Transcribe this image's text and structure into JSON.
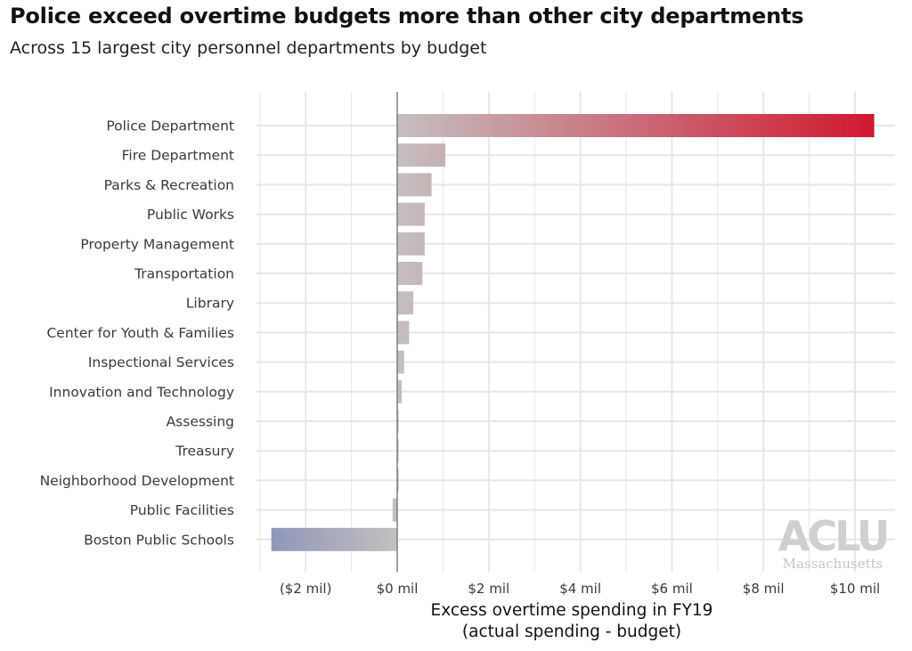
{
  "title": "Police exceed overtime budgets more than other city departments",
  "subtitle": "Across 15 largest city personnel departments by budget",
  "logo": {
    "name": "ACLU",
    "region": "Massachusetts"
  },
  "chart_data": {
    "type": "bar",
    "orientation": "horizontal",
    "categories": [
      "Police Department",
      "Fire Department",
      "Parks & Recreation",
      "Public Works",
      "Property Management",
      "Transportation",
      "Library",
      "Center for Youth & Families",
      "Inspectional Services",
      "Innovation and Technology",
      "Assessing",
      "Treasury",
      "Neighborhood Development",
      "Public Facilities",
      "Boston Public Schools"
    ],
    "values": [
      10.42,
      1.05,
      0.75,
      0.6,
      0.6,
      0.55,
      0.35,
      0.26,
      0.15,
      0.1,
      0.03,
      0.03,
      0.03,
      -0.1,
      -2.75
    ],
    "units": "millions of dollars",
    "xlabel": [
      "Excess overtime spending in FY19",
      "(actual spending - budget)"
    ],
    "ylabel": "",
    "xlim": [
      -3.1,
      10.6
    ],
    "x_ticks": [
      -2,
      0,
      2,
      4,
      6,
      8,
      10
    ],
    "x_tick_labels": [
      "($2 mil)",
      "$0 mil",
      "$2 mil",
      "$4 mil",
      "$6 mil",
      "$8 mil",
      "$10 mil"
    ],
    "grid": true,
    "legend": "none",
    "colors": {
      "high": "#d0182f",
      "mid": "#c4c0c0",
      "low": "#8f97b8",
      "grid": "#e6e6e6",
      "zero_line": "#555555"
    }
  }
}
